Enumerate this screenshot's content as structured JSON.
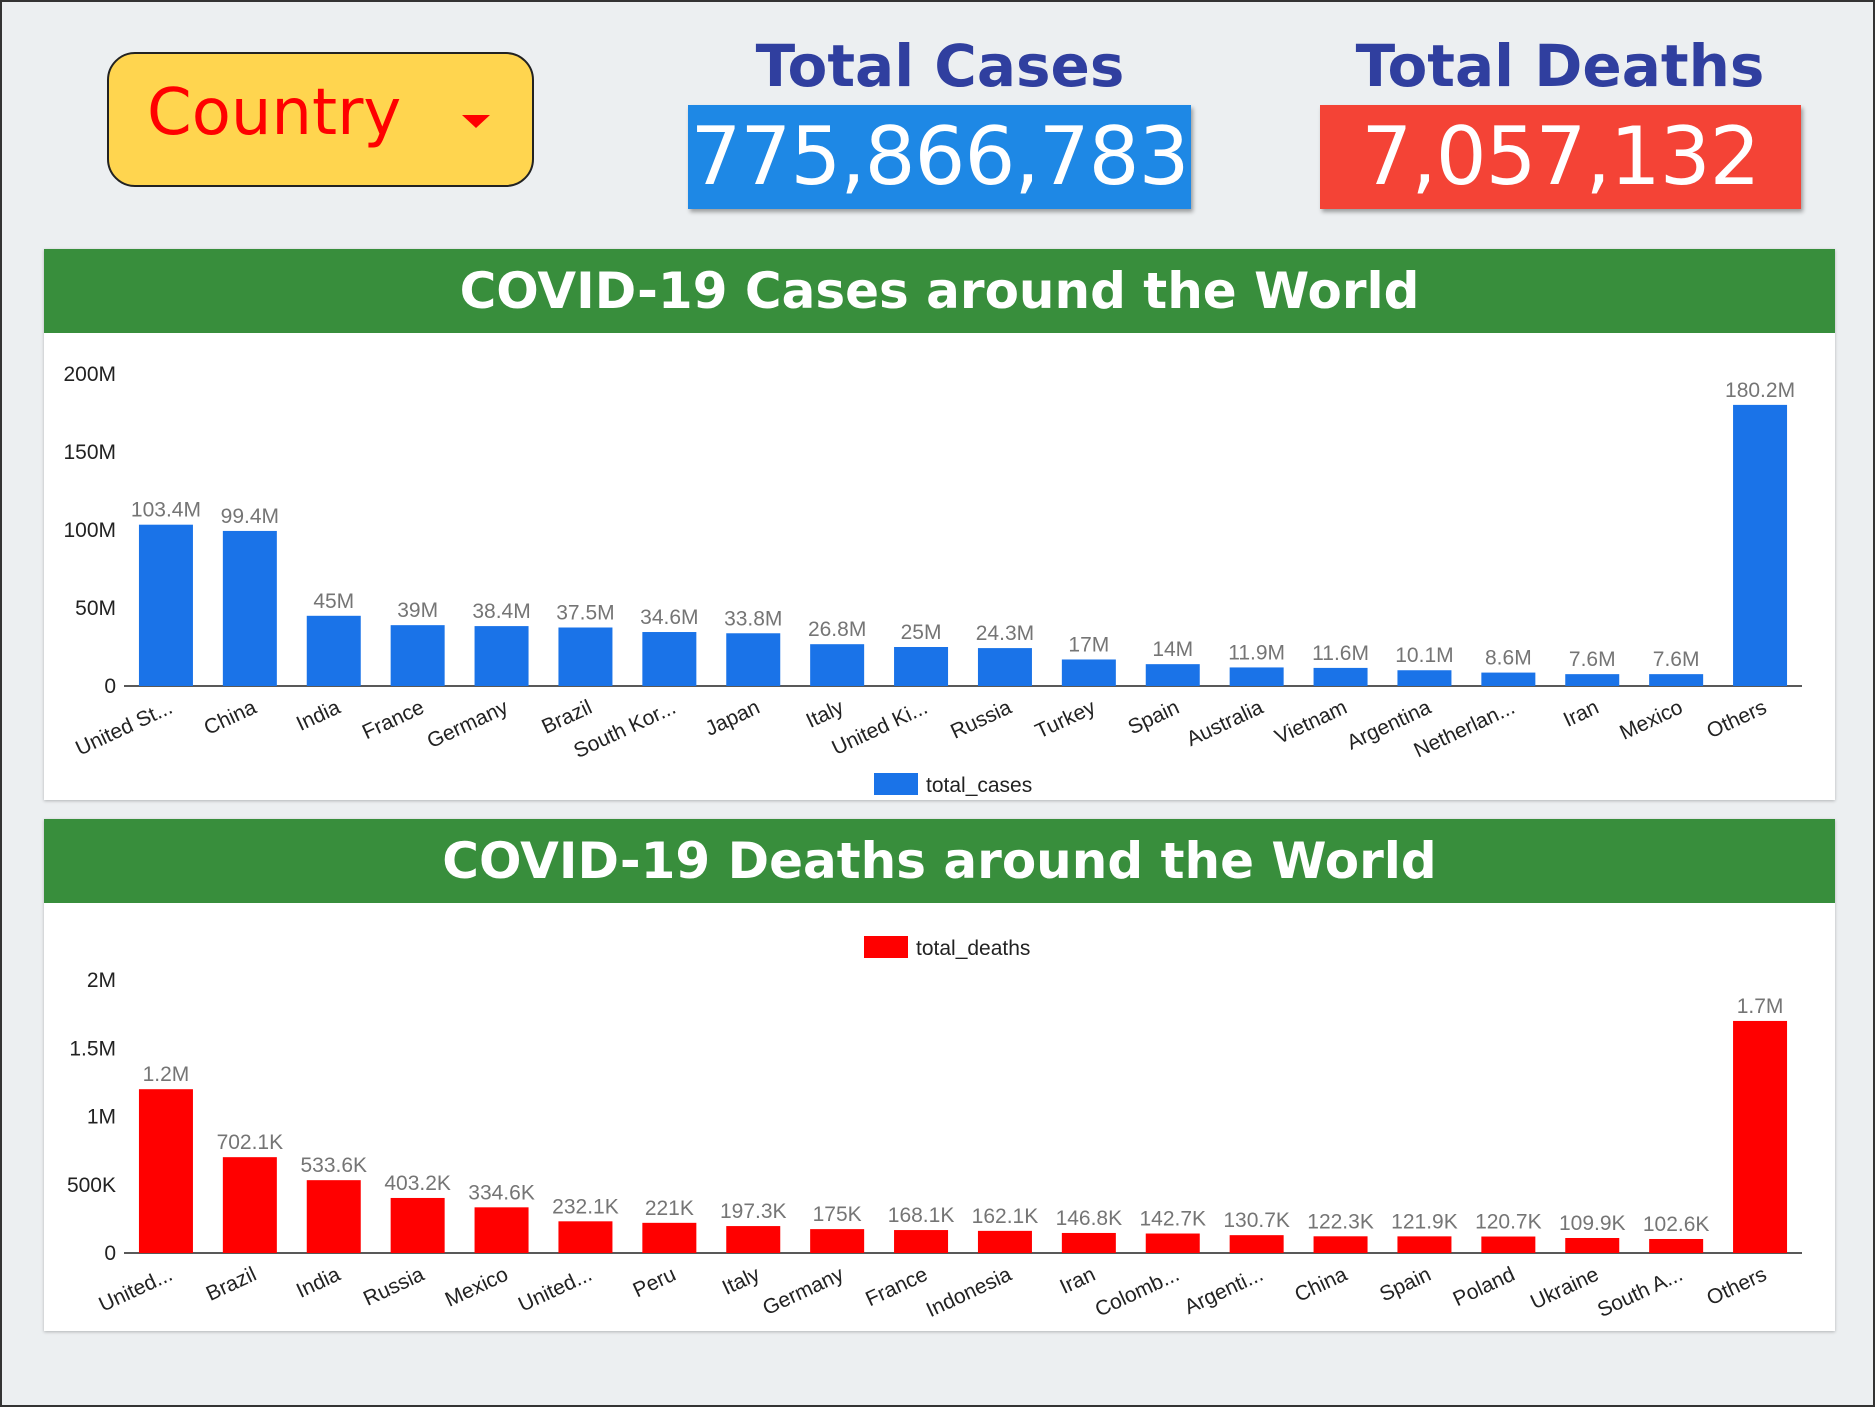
{
  "filter": {
    "label": "Country"
  },
  "kpis": {
    "cases_title": "Total Cases",
    "cases_value": "775,866,783",
    "deaths_title": "Total Deaths",
    "deaths_value": "7,057,132"
  },
  "colors": {
    "cases": "#1a73e8",
    "deaths": "#ff0000",
    "cases_box": "#1e88e5",
    "deaths_box": "#f44336",
    "header": "#388e3c",
    "filter_bg": "#ffd54f"
  },
  "chart_data": [
    {
      "type": "bar",
      "title": "COVID-19 Cases around the World",
      "categories": [
        "United St...",
        "China",
        "India",
        "France",
        "Germany",
        "Brazil",
        "South Kor...",
        "Japan",
        "Italy",
        "United Ki...",
        "Russia",
        "Turkey",
        "Spain",
        "Australia",
        "Vietnam",
        "Argentina",
        "Netherlan...",
        "Iran",
        "Mexico",
        "Others"
      ],
      "series": [
        {
          "name": "total_cases",
          "values": [
            103.4,
            99.4,
            45,
            39,
            38.4,
            37.5,
            34.6,
            33.8,
            26.8,
            25,
            24.3,
            17,
            14,
            11.9,
            11.6,
            10.1,
            8.6,
            7.6,
            7.6,
            180.2
          ],
          "labels": [
            "103.4M",
            "99.4M",
            "45M",
            "39M",
            "38.4M",
            "37.5M",
            "34.6M",
            "33.8M",
            "26.8M",
            "25M",
            "24.3M",
            "17M",
            "14M",
            "11.9M",
            "11.6M",
            "10.1M",
            "8.6M",
            "7.6M",
            "7.6M",
            "180.2M"
          ]
        }
      ],
      "unit": "millions",
      "ylim": [
        0,
        200
      ],
      "yticks": [
        {
          "value": 0,
          "label": "0"
        },
        {
          "value": 50,
          "label": "50M"
        },
        {
          "value": 100,
          "label": "100M"
        },
        {
          "value": 150,
          "label": "150M"
        },
        {
          "value": 200,
          "label": "200M"
        }
      ],
      "legend_position": "bottom",
      "grid": false
    },
    {
      "type": "bar",
      "title": "COVID-19 Deaths around the World",
      "categories": [
        "United...",
        "Brazil",
        "India",
        "Russia",
        "Mexico",
        "United...",
        "Peru",
        "Italy",
        "Germany",
        "France",
        "Indonesia",
        "Iran",
        "Colomb...",
        "Argenti...",
        "China",
        "Spain",
        "Poland",
        "Ukraine",
        "South A...",
        "Others"
      ],
      "series": [
        {
          "name": "total_deaths",
          "values": [
            1.2,
            0.7021,
            0.5336,
            0.4032,
            0.3346,
            0.2321,
            0.221,
            0.1973,
            0.175,
            0.1681,
            0.1621,
            0.1468,
            0.1427,
            0.1307,
            0.1223,
            0.1219,
            0.1207,
            0.1099,
            0.1026,
            1.7
          ],
          "labels": [
            "1.2M",
            "702.1K",
            "533.6K",
            "403.2K",
            "334.6K",
            "232.1K",
            "221K",
            "197.3K",
            "175K",
            "168.1K",
            "162.1K",
            "146.8K",
            "142.7K",
            "130.7K",
            "122.3K",
            "121.9K",
            "120.7K",
            "109.9K",
            "102.6K",
            "1.7M"
          ]
        }
      ],
      "unit": "millions",
      "ylim": [
        0,
        2
      ],
      "yticks": [
        {
          "value": 0,
          "label": "0"
        },
        {
          "value": 0.5,
          "label": "500K"
        },
        {
          "value": 1,
          "label": "1M"
        },
        {
          "value": 1.5,
          "label": "1.5M"
        },
        {
          "value": 2,
          "label": "2M"
        }
      ],
      "legend_position": "top",
      "grid": false
    }
  ]
}
